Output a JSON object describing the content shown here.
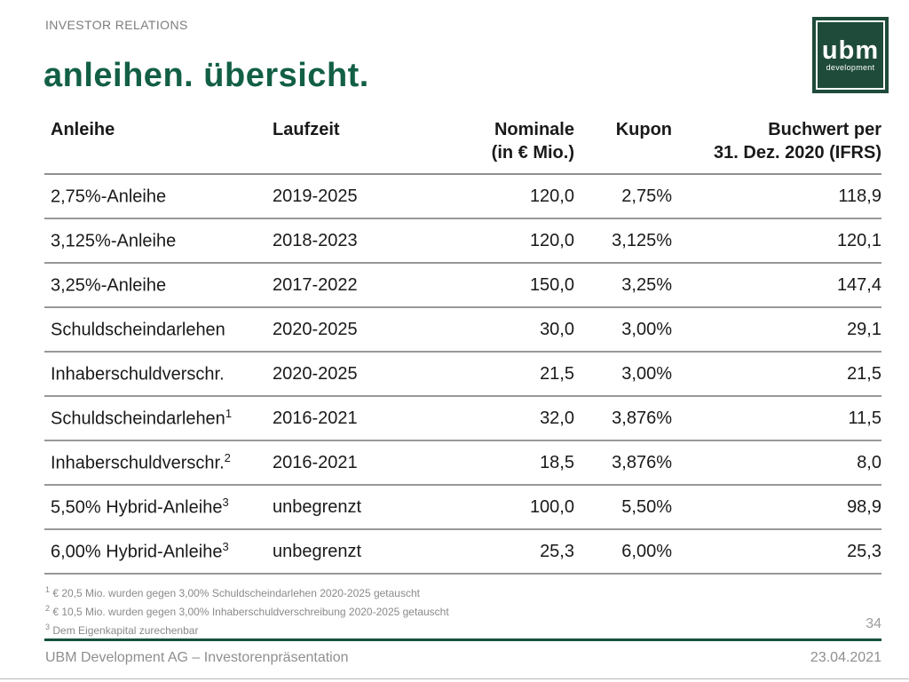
{
  "page": {
    "eyebrow": "INVESTOR RELATIONS",
    "title": "anleihen. übersicht.",
    "page_number": "34",
    "footer_left": "UBM Development AG – Investorenpräsentation",
    "footer_right": "23.04.2021"
  },
  "logo": {
    "text": "ubm",
    "subtext": "development"
  },
  "colors": {
    "brand_green": "#125f46",
    "logo_green": "#1e4b3a",
    "rule_green": "#14503c",
    "gray_text": "#8f8f8f",
    "separator_gray": "#989898"
  },
  "table": {
    "headers": {
      "anleihe": "Anleihe",
      "laufzeit": "Laufzeit",
      "nominale_line1": "Nominale",
      "nominale_line2": "(in € Mio.)",
      "kupon": "Kupon",
      "buchwert_line1": "Buchwert per",
      "buchwert_line2": "31. Dez. 2020 (IFRS)"
    },
    "rows": [
      {
        "name": "2,75%-Anleihe",
        "sup": "",
        "laufzeit": "2019-2025",
        "nominale": "120,0",
        "kupon": "2,75%",
        "buchwert": "118,9"
      },
      {
        "name": "3,125%-Anleihe",
        "sup": "",
        "laufzeit": "2018-2023",
        "nominale": "120,0",
        "kupon": "3,125%",
        "buchwert": "120,1"
      },
      {
        "name": "3,25%-Anleihe",
        "sup": "",
        "laufzeit": "2017-2022",
        "nominale": "150,0",
        "kupon": "3,25%",
        "buchwert": "147,4"
      },
      {
        "name": "Schuldscheindarlehen",
        "sup": "",
        "laufzeit": "2020-2025",
        "nominale": "30,0",
        "kupon": "3,00%",
        "buchwert": "29,1"
      },
      {
        "name": "Inhaberschuldverschr.",
        "sup": "",
        "laufzeit": "2020-2025",
        "nominale": "21,5",
        "kupon": "3,00%",
        "buchwert": "21,5"
      },
      {
        "name": "Schuldscheindarlehen",
        "sup": "1",
        "laufzeit": "2016-2021",
        "nominale": "32,0",
        "kupon": "3,876%",
        "buchwert": "11,5"
      },
      {
        "name": "Inhaberschuldverschr.",
        "sup": "2",
        "laufzeit": "2016-2021",
        "nominale": "18,5",
        "kupon": "3,876%",
        "buchwert": "8,0"
      },
      {
        "name": "5,50% Hybrid-Anleihe",
        "sup": "3",
        "laufzeit": "unbegrenzt",
        "nominale": "100,0",
        "kupon": "5,50%",
        "buchwert": "98,9"
      },
      {
        "name": "6,00% Hybrid-Anleihe",
        "sup": "3",
        "laufzeit": "unbegrenzt",
        "nominale": "25,3",
        "kupon": "6,00%",
        "buchwert": "25,3"
      }
    ]
  },
  "footnotes": [
    {
      "marker": "1",
      "text": "€ 20,5 Mio. wurden gegen 3,00% Schuldscheindarlehen 2020-2025 getauscht"
    },
    {
      "marker": "2",
      "text": "€ 10,5 Mio. wurden gegen 3,00% Inhaberschuldverschreibung 2020-2025 getauscht"
    },
    {
      "marker": "3",
      "text": "Dem Eigenkapital zurechenbar"
    }
  ]
}
